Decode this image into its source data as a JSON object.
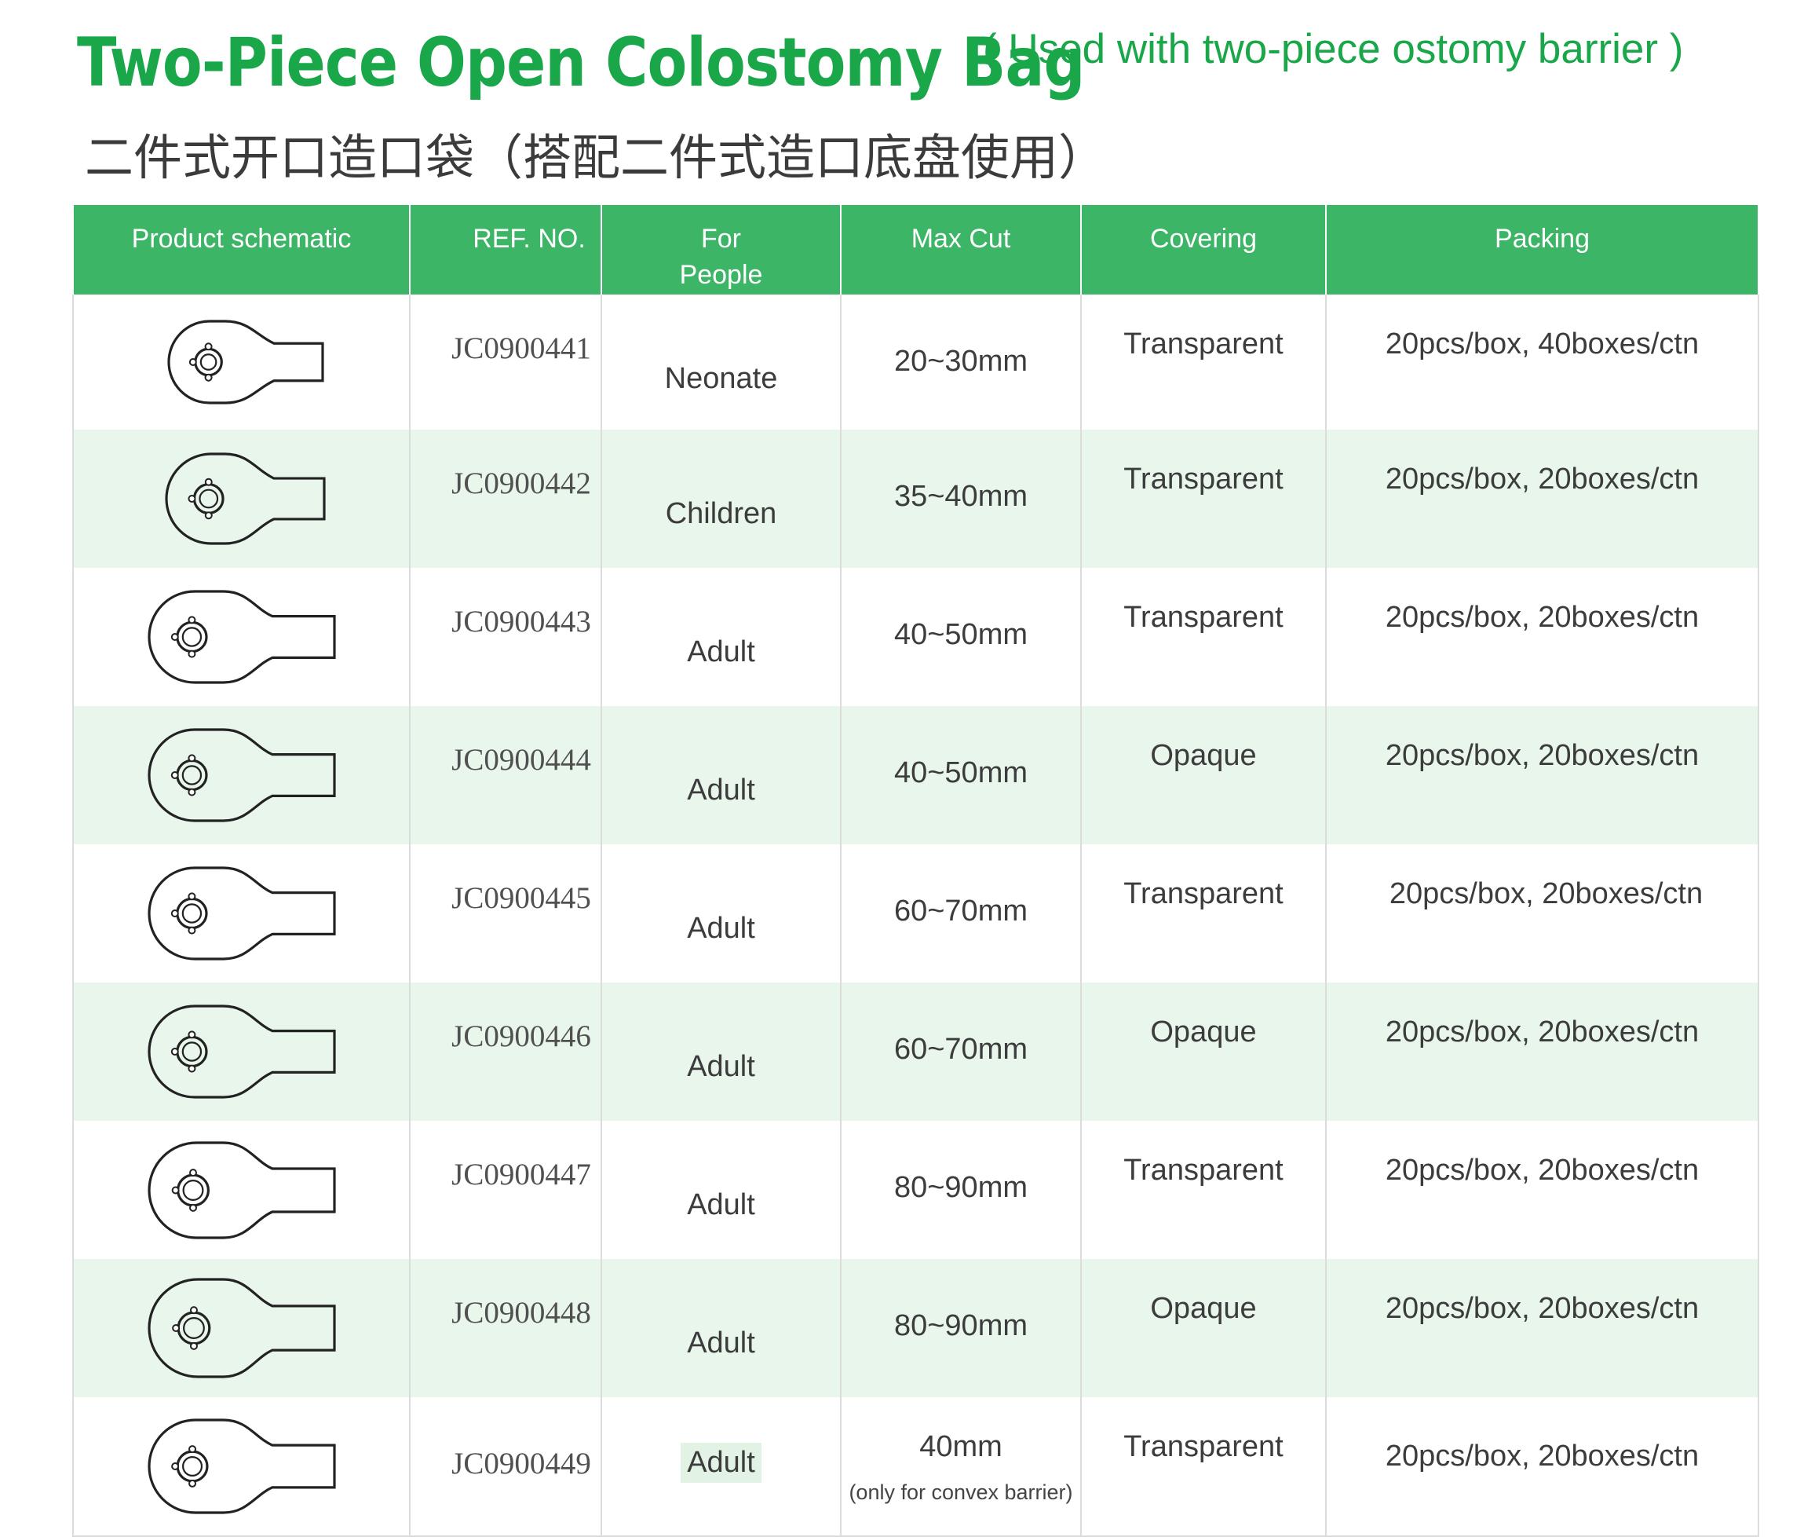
{
  "title": {
    "main": "Two-Piece Open Colostomy Bag",
    "sub": "( Used with two-piece ostomy barrier )",
    "chinese": "二件式开口造口袋（搭配二件式造口底盘使用）"
  },
  "table": {
    "headers": {
      "schematic": "Product schematic",
      "ref": "REF. NO.",
      "people_line1": "For",
      "people_line2": "People",
      "max_cut": "Max Cut",
      "covering": "Covering",
      "packing": "Packing"
    },
    "rows": [
      {
        "ref": "JC0900441",
        "people": "Neonate",
        "max_cut": "20~30mm",
        "note": "",
        "covering": "Transparent",
        "packing": "20pcs/box, 40boxes/ctn"
      },
      {
        "ref": "JC0900442",
        "people": "Children",
        "max_cut": "35~40mm",
        "note": "",
        "covering": "Transparent",
        "packing": "20pcs/box, 20boxes/ctn"
      },
      {
        "ref": "JC0900443",
        "people": "Adult",
        "max_cut": "40~50mm",
        "note": "",
        "covering": "Transparent",
        "packing": "20pcs/box, 20boxes/ctn"
      },
      {
        "ref": "JC0900444",
        "people": "Adult",
        "max_cut": "40~50mm",
        "note": "",
        "covering": "Opaque",
        "packing": "20pcs/box, 20boxes/ctn"
      },
      {
        "ref": "JC0900445",
        "people": "Adult",
        "max_cut": "60~70mm",
        "note": "",
        "covering": "Transparent",
        "packing": "20pcs/box, 20boxes/ctn"
      },
      {
        "ref": "JC0900446",
        "people": "Adult",
        "max_cut": "60~70mm",
        "note": "",
        "covering": "Opaque",
        "packing": "20pcs/box, 20boxes/ctn"
      },
      {
        "ref": "JC0900447",
        "people": "Adult",
        "max_cut": "80~90mm",
        "note": "",
        "covering": "Transparent",
        "packing": "20pcs/box, 20boxes/ctn"
      },
      {
        "ref": "JC0900448",
        "people": "Adult",
        "max_cut": "80~90mm",
        "note": "",
        "covering": "Opaque",
        "packing": "20pcs/box, 20boxes/ctn"
      },
      {
        "ref": "JC0900449",
        "people": "Adult",
        "max_cut": "40mm",
        "note": "(only for convex barrier)",
        "covering": "Transparent",
        "packing": "20pcs/box, 20boxes/ctn"
      }
    ]
  },
  "colors": {
    "brand_green": "#1aa74a",
    "header_green": "#3cb567",
    "row_shade": "#e9f6ec"
  },
  "icons": {
    "schematic": "colostomy-bag-outline-icon"
  }
}
